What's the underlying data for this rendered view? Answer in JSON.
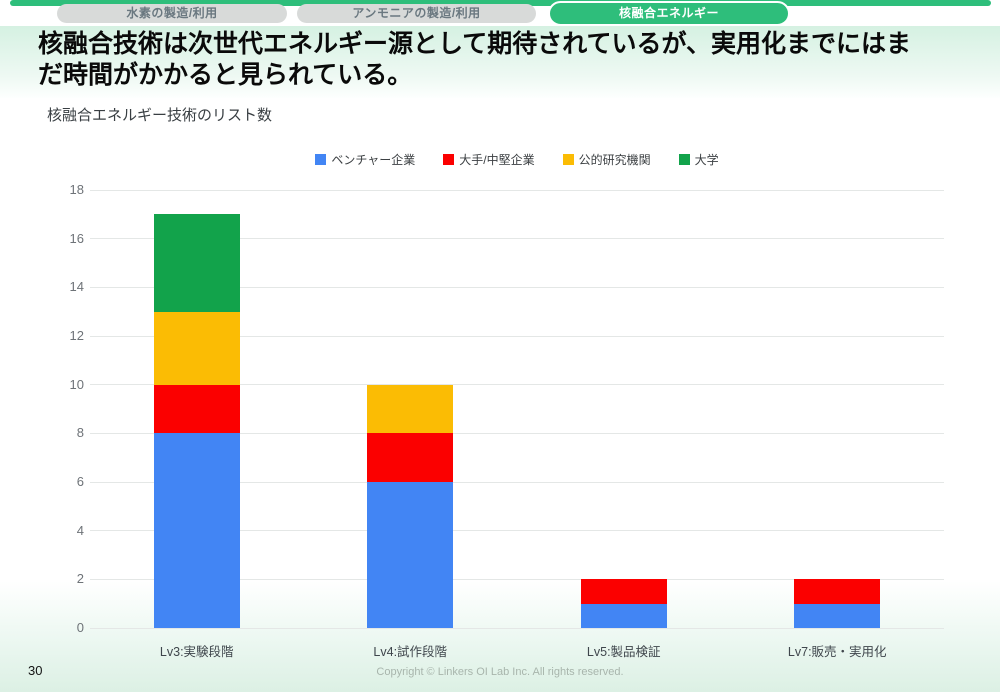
{
  "tabs": {
    "items": [
      {
        "label": "水素の製造/利用",
        "active": false
      },
      {
        "label": "アンモニアの製造/利用",
        "active": false
      },
      {
        "label": "核融合エネルギー",
        "active": true
      }
    ]
  },
  "header": {
    "title": "核融合技術は次世代エネルギー源として期待されているが、実用化までにはまだ時間がかかると見られている。"
  },
  "chart_data": {
    "type": "bar",
    "stacked": true,
    "title": "核融合エネルギー技術のリスト数",
    "categories": [
      "Lv3:実験段階",
      "Lv4:試作段階",
      "Lv5:製品検証",
      "Lv7:販売・実用化"
    ],
    "series": [
      {
        "name": "ベンチャー企業",
        "color": "#4285F4",
        "values": [
          8,
          6,
          1,
          1
        ]
      },
      {
        "name": "大手/中堅企業",
        "color": "#FB0000",
        "values": [
          2,
          2,
          1,
          1
        ]
      },
      {
        "name": "公的研究機関",
        "color": "#FBBC04",
        "values": [
          3,
          2,
          0,
          0
        ]
      },
      {
        "name": "大学",
        "color": "#12A34B",
        "values": [
          4,
          0,
          0,
          0
        ]
      }
    ],
    "ylim": [
      0,
      18
    ],
    "ytick_step": 2,
    "grid": true,
    "legend_position": "top"
  },
  "footer": {
    "page_number": "30",
    "copyright": "Copyright © Linkers OI Lab Inc. All rights reserved."
  },
  "colors": {
    "accent_green": "#2EBE7B",
    "tab_gray": "#D8DAD9"
  }
}
